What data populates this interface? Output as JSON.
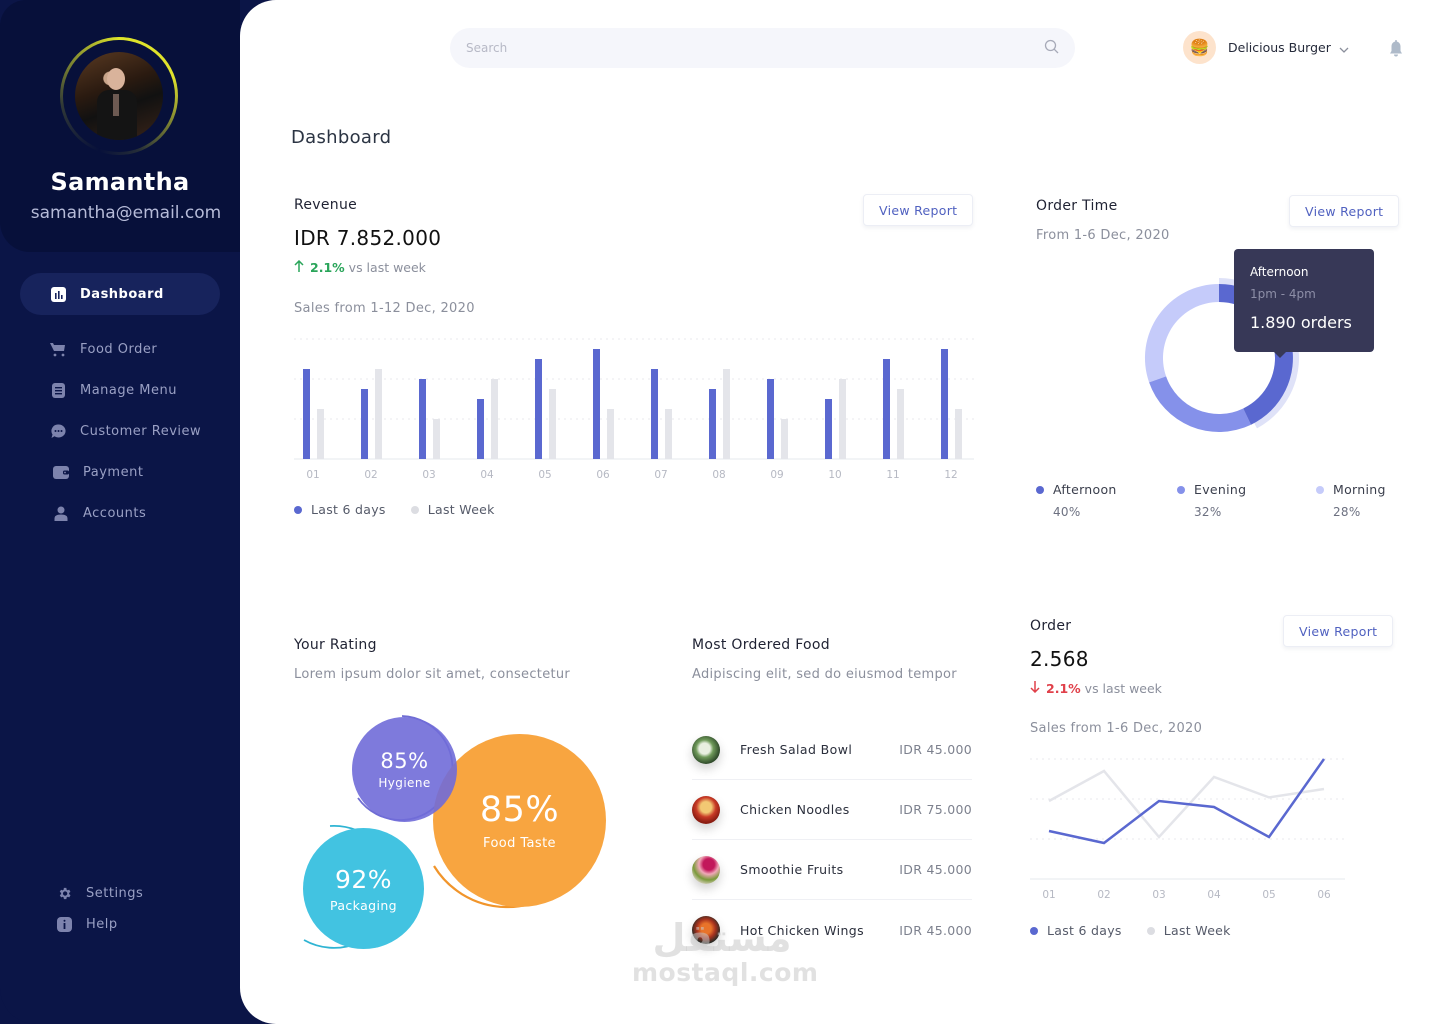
{
  "sidebar": {
    "profile": {
      "name": "Samantha",
      "email": "samantha@email.com"
    },
    "items": [
      {
        "label": "Dashboard",
        "icon": "bar-chart-icon",
        "active": true
      },
      {
        "label": "Food Order",
        "icon": "cart-icon"
      },
      {
        "label": "Manage Menu",
        "icon": "document-icon"
      },
      {
        "label": "Customer Review",
        "icon": "chat-bubble-icon"
      },
      {
        "label": "Payment",
        "icon": "wallet-icon"
      },
      {
        "label": "Accounts",
        "icon": "user-icon"
      }
    ],
    "bottom_items": [
      {
        "label": "Settings",
        "icon": "gear-icon"
      },
      {
        "label": "Help",
        "icon": "info-icon"
      }
    ]
  },
  "header": {
    "search": {
      "placeholder": "Search",
      "value": ""
    },
    "restaurant": {
      "name": "Delicious Burger",
      "logo": "🍔"
    }
  },
  "page": {
    "title": "Dashboard"
  },
  "revenue": {
    "title": "Revenue",
    "amount": "IDR 7.852.000",
    "change": "2.1%",
    "change_direction": "up",
    "change_suffix": "vs last week",
    "subtitle": "Sales from 1-12 Dec, 2020",
    "button": "View Report",
    "legend": [
      "Last 6 days",
      "Last Week"
    ]
  },
  "order_time": {
    "title": "Order Time",
    "subtitle": "From 1-6 Dec, 2020",
    "button": "View Report",
    "tooltip": {
      "label": "Afternoon",
      "range": "1pm - 4pm",
      "value": "1.890 orders"
    },
    "legend": [
      {
        "label": "Afternoon",
        "value": "40%",
        "color": "#5a68d0"
      },
      {
        "label": "Evening",
        "value": "32%",
        "color": "#8591ea"
      },
      {
        "label": "Morning",
        "value": "28%",
        "color": "#c5cbfa"
      }
    ]
  },
  "rating": {
    "title": "Your Rating",
    "subtitle": "Lorem ipsum dolor sit amet, consectetur",
    "bubbles": [
      {
        "value": "85%",
        "label": "Hygiene",
        "color": "#7d7bdc"
      },
      {
        "value": "85%",
        "label": "Food Taste",
        "color": "#f8a540"
      },
      {
        "value": "92%",
        "label": "Packaging",
        "color": "#3ec3e0"
      }
    ]
  },
  "most_ordered": {
    "title": "Most Ordered Food",
    "subtitle": "Adipiscing elit, sed do eiusmod tempor",
    "items": [
      {
        "name": "Fresh Salad Bowl",
        "price": "IDR 45.000"
      },
      {
        "name": "Chicken Noodles",
        "price": "IDR 75.000"
      },
      {
        "name": "Smoothie Fruits",
        "price": "IDR 45.000"
      },
      {
        "name": "Hot Chicken Wings",
        "price": "IDR 45.000"
      }
    ]
  },
  "order": {
    "title": "Order",
    "amount": "2.568",
    "change": "2.1%",
    "change_direction": "down",
    "change_suffix": "vs last week",
    "subtitle": "Sales from 1-6 Dec, 2020",
    "button": "View Report",
    "legend": [
      "Last 6 days",
      "Last Week"
    ]
  },
  "watermark": {
    "arabic": "مستقل",
    "text": "mostaql.com"
  },
  "colors": {
    "sidebar": "#0b1547",
    "accent": "#5a68d0",
    "secondary": "#e4e5ea",
    "positive": "#2aa55a",
    "negative": "#e0404a"
  },
  "chart_data": [
    {
      "type": "bar",
      "title": "Revenue - Sales from 1-12 Dec, 2020",
      "categories": [
        "01",
        "02",
        "03",
        "04",
        "05",
        "06",
        "07",
        "08",
        "09",
        "10",
        "11",
        "12"
      ],
      "series": [
        {
          "name": "Last 6 days",
          "color": "#5a68d0",
          "values": [
            9,
            7,
            8,
            6,
            10,
            11,
            9,
            7,
            8,
            6,
            10,
            11
          ]
        },
        {
          "name": "Last Week",
          "color": "#e4e5ea",
          "values": [
            5,
            9,
            4,
            8,
            7,
            5,
            5,
            9,
            4,
            8,
            7,
            5
          ]
        }
      ],
      "ylim": [
        0,
        12
      ],
      "grid": true,
      "legend_position": "bottom-left"
    },
    {
      "type": "pie",
      "title": "Order Time - From 1-6 Dec, 2020",
      "categories": [
        "Afternoon",
        "Evening",
        "Morning"
      ],
      "values": [
        40,
        32,
        28
      ],
      "colors": [
        "#5a68d0",
        "#8591ea",
        "#c5cbfa"
      ],
      "annotation": "Afternoon 1pm - 4pm 1.890 orders",
      "legend_position": "bottom"
    },
    {
      "type": "line",
      "title": "Order - Sales from 1-6 Dec, 2020",
      "categories": [
        "01",
        "02",
        "03",
        "04",
        "05",
        "06"
      ],
      "series": [
        {
          "name": "Last 6 days",
          "color": "#5a68d0",
          "values": [
            4,
            3,
            6.5,
            6,
            3.5,
            10
          ]
        },
        {
          "name": "Last Week",
          "color": "#e4e5ea",
          "values": [
            6.5,
            9,
            3.5,
            8.5,
            6.8,
            7.5
          ]
        }
      ],
      "ylim": [
        0,
        10
      ],
      "grid": true,
      "legend_position": "bottom-left"
    }
  ]
}
